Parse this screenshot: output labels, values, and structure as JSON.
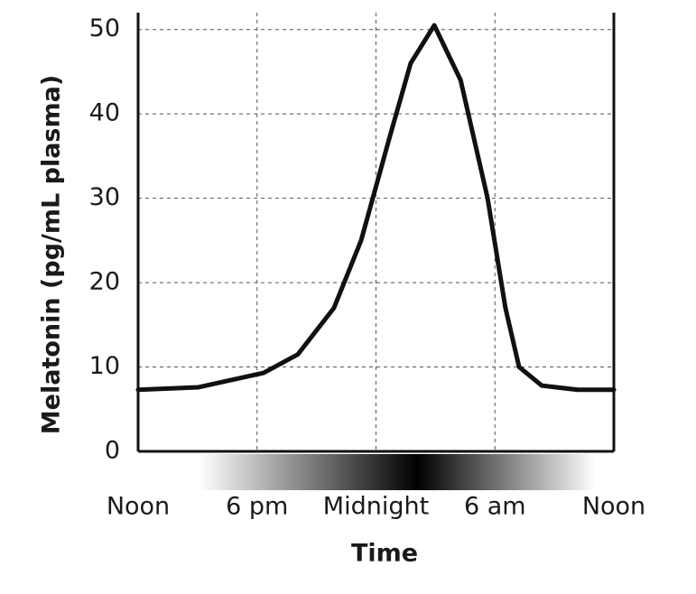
{
  "chart_data": {
    "type": "line",
    "x_label": "Time",
    "y_label": "Melatonin (pg/mL plasma)",
    "x": [
      0,
      3.05,
      6.33,
      8.06,
      9.88,
      11.25,
      12.66,
      13.75,
      14.94,
      16.27,
      17.63,
      18.53,
      19.22,
      20.36,
      22.18,
      24
    ],
    "series": [
      {
        "name": "Melatonin",
        "color": "#111111",
        "values": [
          7.3,
          7.6,
          9.3,
          11.5,
          17,
          25,
          37,
          46,
          50.5,
          44,
          30,
          17,
          10,
          7.8,
          7.3,
          7.3
        ]
      }
    ],
    "xlim": [
      0,
      24
    ],
    "xticks": [
      {
        "value": 0,
        "label": "Noon"
      },
      {
        "value": 6,
        "label": "6 pm"
      },
      {
        "value": 12,
        "label": "Midnight"
      },
      {
        "value": 18,
        "label": "6 am"
      },
      {
        "value": 24,
        "label": "Noon"
      }
    ],
    "ylim": [
      0,
      52
    ],
    "yticks": [
      0,
      10,
      20,
      30,
      40,
      50
    ],
    "grid": true
  }
}
